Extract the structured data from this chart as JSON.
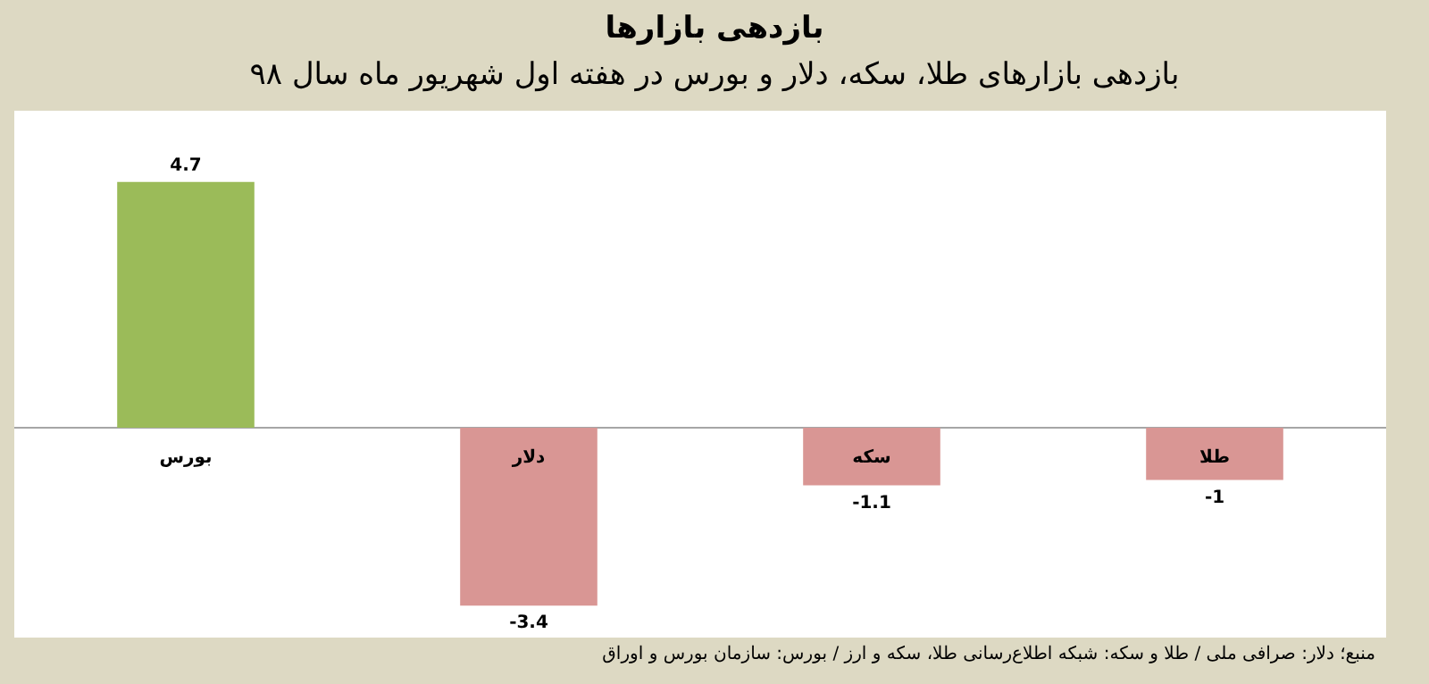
{
  "chart_data": {
    "type": "bar",
    "title": "بازدهی بازارها",
    "subtitle": "بازدهی بازارهای طلا، سکه، دلار و بورس در هفته اول شهریور ماه سال ۹۸",
    "categories": [
      "بورس",
      "دلار",
      "سکه",
      "طلا"
    ],
    "values": [
      4.7,
      -3.4,
      -1.1,
      -1
    ],
    "colors": [
      "#9bbb59",
      "#d99694",
      "#d99694",
      "#d99694"
    ],
    "data_labels": true,
    "legend": false,
    "grid": false,
    "annotations": [
      "منبع؛ دلار: صرافی ملی / طلا و سکه: شبکه اطلاع‌رسانی طلا، سکه و ارز / بورس: سازمان بورس و اوراق"
    ]
  }
}
